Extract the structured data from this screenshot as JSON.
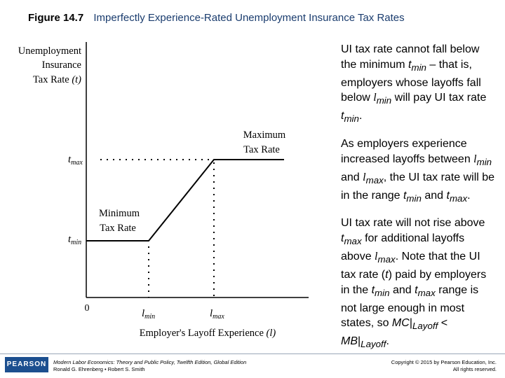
{
  "title": {
    "figure_label": "Figure 14.7",
    "text": "Imperfectly Experience-Rated Unemployment Insurance Tax Rates"
  },
  "diagram": {
    "y_axis_label": [
      "Unemployment",
      "Insurance",
      "Tax Rate"
    ],
    "y_axis_symbol": "(t)",
    "x_axis_label": "Employer's Layoff Experience",
    "x_axis_symbol": "(l)",
    "origin": "0",
    "t_max": "t",
    "t_max_sub": "max",
    "t_min": "t",
    "t_min_sub": "min",
    "l_min": "l",
    "l_min_sub": "min",
    "l_max": "l",
    "l_max_sub": "max",
    "maximum_label": [
      "Maximum",
      "Tax Rate"
    ],
    "minimum_label": [
      "Minimum",
      "Tax Rate"
    ]
  },
  "bullets": {
    "b1": {
      "a": "UI tax rate cannot fall below the minimum ",
      "t": "t",
      "min": "min",
      "b": " – that is, employers whose layoffs fall below ",
      "l": "l",
      "lmin": "min",
      "c": " will pay UI tax rate ",
      "t2": "t",
      "min2": "min",
      "d": "."
    },
    "b2": {
      "a": "As employers experience increased layoffs between ",
      "l1": "l",
      "min": "min",
      "b": " and ",
      "l2": "l",
      "max": "max",
      "c": ", the UI tax rate will be in the range ",
      "t1": "t",
      "tmin": "min",
      "d": " and ",
      "t2": "t",
      "tmax": "max",
      "e": "."
    },
    "b3": {
      "a": "UI tax rate will not rise above ",
      "t": "t",
      "max": "max",
      "b": " for additional layoffs above ",
      "l": "l",
      "lmax": "max",
      "c": ". Note that the UI tax rate (",
      "t2": "t",
      "d": ") paid by employers in the ",
      "t3": "t",
      "min3": "min",
      "e": " and ",
      "t4": "t",
      "max4": "max",
      "f": " range is not large enough in most states, so ",
      "mc": "MC",
      "bar1": "|",
      "layoff1": "Layoff",
      "lt": " < ",
      "mb": "MB",
      "bar2": "|",
      "layoff2": "Layoff",
      "end": "."
    }
  },
  "footer": {
    "logo": "PEARSON",
    "book": "Modern Labor Economics: Theory and Public Policy, Twelfth Edition, Global Edition",
    "authors": "Ronald G. Ehrenberg • Robert S. Smith",
    "copyright": "Copyright © 2015 by Pearson Education, Inc.",
    "rights": "All rights reserved."
  }
}
